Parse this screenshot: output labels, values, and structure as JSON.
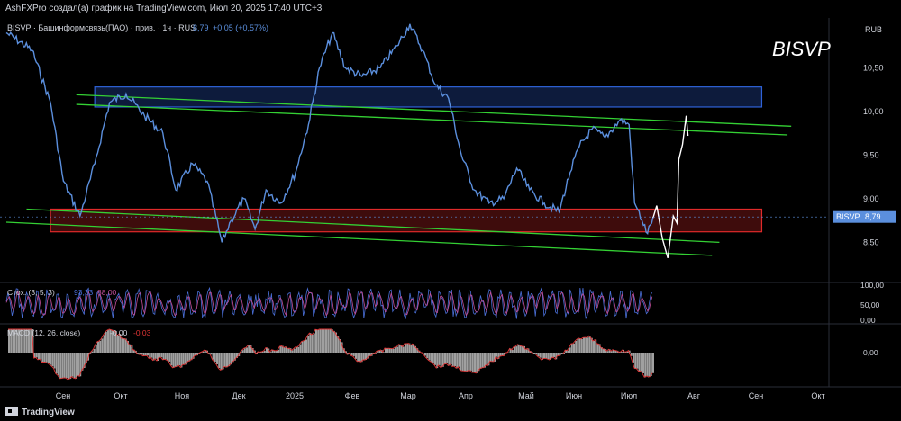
{
  "header": {
    "attribution": "AshFXPro создал(а) график на TradingView.com, Июл 20, 2025 17:40 UTC+3"
  },
  "legend": {
    "symbol": "BISVP · Башинформсвязь(ПАО) · прив. · 1ч · RUS",
    "last": "8,79",
    "change": "+0,05 (+0,57%)"
  },
  "watermark": "BISVP",
  "currency": "RUB",
  "price_tag": {
    "symbol": "BISVP",
    "value": "8,79"
  },
  "stoch": {
    "label": "Стох. (3, 5, 3)",
    "k": "93,33",
    "d": "88,00"
  },
  "macd": {
    "label": "MACD (12, 26, close)",
    "v1": "-0,00",
    "v2": "-0,03"
  },
  "footer": {
    "brand": "TradingView"
  },
  "colors": {
    "price": "#5b8fdd",
    "support": "#e02a2a",
    "resistance": "#2f62d8",
    "channel": "#34d134",
    "stoch_k": "#4a6fd8",
    "stoch_d": "#c24f9b",
    "macd_hist": "#a0a0a0",
    "macd_neg": "#e03434",
    "projection": "#ffffff"
  },
  "chart_data": {
    "type": "line",
    "x": [
      "2024-08-01",
      "2024-08-15",
      "2024-08-25",
      "2024-09-01",
      "2024-09-10",
      "2024-09-18",
      "2024-09-26",
      "2024-10-05",
      "2024-10-15",
      "2024-10-25",
      "2024-11-01",
      "2024-11-10",
      "2024-11-18",
      "2024-11-26",
      "2024-12-01",
      "2024-12-08",
      "2024-12-14",
      "2024-12-20",
      "2024-12-28",
      "2025-01-05",
      "2025-01-12",
      "2025-01-18",
      "2025-01-25",
      "2025-02-01",
      "2025-02-10",
      "2025-02-20",
      "2025-03-01",
      "2025-03-08",
      "2025-03-15",
      "2025-03-22",
      "2025-03-29",
      "2025-04-05",
      "2025-04-12",
      "2025-04-20",
      "2025-04-28",
      "2025-05-05",
      "2025-05-12",
      "2025-05-20",
      "2025-05-28",
      "2025-06-03",
      "2025-06-08",
      "2025-06-15",
      "2025-06-22",
      "2025-06-30",
      "2025-07-05",
      "2025-07-08",
      "2025-07-12",
      "2025-07-15",
      "2025-07-18"
    ],
    "values": [
      10.9,
      10.7,
      10.1,
      9.2,
      8.8,
      9.4,
      10.1,
      10.2,
      9.95,
      9.75,
      9.1,
      9.4,
      9.2,
      8.5,
      8.75,
      9.0,
      8.65,
      9.1,
      8.95,
      9.3,
      9.85,
      10.5,
      10.9,
      10.5,
      10.4,
      10.5,
      10.75,
      11.0,
      10.7,
      10.3,
      10.15,
      9.5,
      9.1,
      8.95,
      9.0,
      9.35,
      9.1,
      8.95,
      8.85,
      9.3,
      9.6,
      9.8,
      9.7,
      9.9,
      9.85,
      8.95,
      8.75,
      8.6,
      8.79
    ],
    "ylim": [
      8.05,
      11.07
    ],
    "y_ticks": [
      "10,50",
      "10,00",
      "9,50",
      "9,00",
      "8,50"
    ],
    "x_ticks": [
      "Сен",
      "Окт",
      "Ноя",
      "Дек",
      "2025",
      "Фев",
      "Мар",
      "Апр",
      "Май",
      "Июн",
      "Июл",
      "Авг",
      "Сен",
      "Окт"
    ],
    "zones": [
      {
        "kind": "resistance",
        "start": "2024-09-18",
        "end": "2025-09-15",
        "low": 10.05,
        "high": 10.28
      },
      {
        "kind": "support",
        "start": "2024-08-25",
        "end": "2025-09-15",
        "low": 8.62,
        "high": 8.88
      }
    ],
    "channels": [
      {
        "start": [
          "2024-09-08",
          10.19
        ],
        "end": [
          "2025-10-01",
          9.83
        ]
      },
      {
        "start": [
          "2024-09-08",
          10.08
        ],
        "end": [
          "2025-09-29",
          9.73
        ]
      },
      {
        "start": [
          "2024-08-12",
          8.88
        ],
        "end": [
          "2025-08-23",
          8.5
        ]
      },
      {
        "start": [
          "2024-08-01",
          8.73
        ],
        "end": [
          "2025-08-19",
          8.35
        ]
      }
    ],
    "projection": [
      [
        "2025-07-18",
        8.78
      ],
      [
        "2025-07-20",
        8.92
      ],
      [
        "2025-07-23",
        8.55
      ],
      [
        "2025-07-26",
        8.32
      ],
      [
        "2025-07-29",
        8.8
      ],
      [
        "2025-07-31",
        8.72
      ],
      [
        "2025-08-01",
        9.45
      ],
      [
        "2025-08-03",
        9.62
      ],
      [
        "2025-08-05",
        9.95
      ],
      [
        "2025-08-06",
        9.72
      ]
    ],
    "stoch": {
      "ylim": [
        0,
        100
      ],
      "y_ticks": [
        "100,00",
        "50,00",
        "0,00"
      ]
    },
    "macd": {
      "y_ticks": [
        "0,00"
      ]
    }
  }
}
